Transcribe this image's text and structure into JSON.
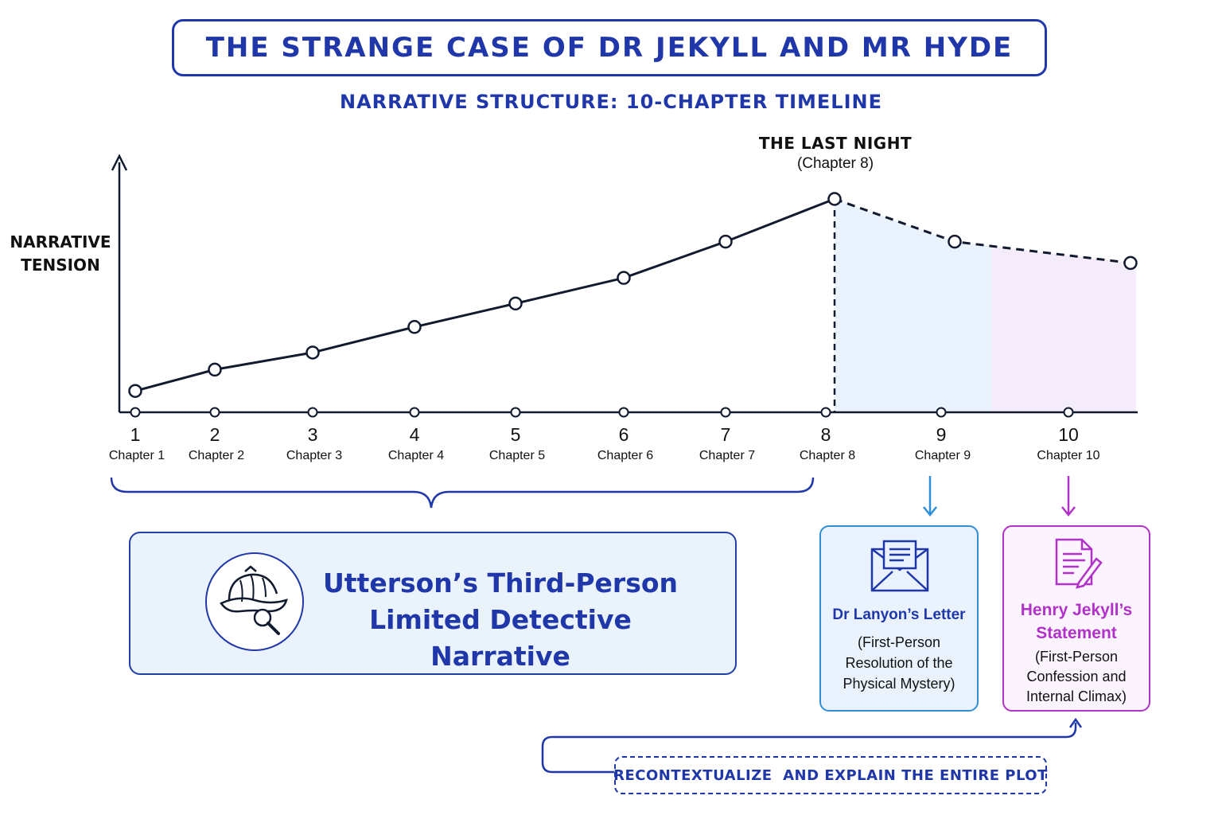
{
  "header": {
    "title": "THE STRANGE CASE OF DR JEKYLL AND MR HYDE",
    "subtitle": "NARRATIVE STRUCTURE: 10-CHAPTER TIMELINE"
  },
  "chart_data": {
    "type": "line",
    "ylabel_lines": [
      "NARRATIVE",
      "TENSION"
    ],
    "categories": [
      "1",
      "2",
      "3",
      "4",
      "5",
      "6",
      "7",
      "8",
      "9",
      "10"
    ],
    "category_sublabels": [
      "Chapter 1",
      "Chapter 2",
      "Chapter 3",
      "Chapter 4",
      "Chapter 5",
      "Chapter 6",
      "Chapter 7",
      "Chapter 8",
      "Chapter 9",
      "Chapter 10"
    ],
    "values": [
      1.0,
      2.0,
      2.8,
      4.0,
      5.1,
      6.3,
      8.0,
      10.0,
      8.0,
      7.0
    ],
    "ylim": [
      0,
      11
    ],
    "solid_through_index": 7,
    "dashed_after_index": 7,
    "peak_annotation": {
      "title": "THE LAST NIGHT",
      "subtitle": "(Chapter 8)"
    },
    "colors": {
      "line": "#111a2e",
      "region_ch9": "#eaf3fd",
      "region_ch10": "#f5ecfb"
    }
  },
  "utterson": {
    "line1": "Utterson’s Third-Person",
    "line2": "Limited Detective Narrative",
    "icon": "detective-hat-magnifier-icon"
  },
  "lanyon": {
    "icon": "envelope-letter-icon",
    "title": "Dr Lanyon’s Letter",
    "sub": [
      "(First-Person",
      "Resolution of the",
      "Physical Mystery)"
    ],
    "color": "#2e8fd8"
  },
  "jekyll": {
    "icon": "document-pen-icon",
    "title": [
      "Henry Jekyll’s",
      "Statement"
    ],
    "sub": [
      "(First-Person",
      "Confession and",
      "Internal Climax)"
    ],
    "color": "#b132c8"
  },
  "recontextualize": {
    "text": "RECONTEXTUALIZE  AND EXPLAIN THE ENTIRE PLOT"
  },
  "colors": {
    "brand_blue": "#1f37a8",
    "light_blue": "#2e8fd8",
    "purple": "#b132c8"
  }
}
